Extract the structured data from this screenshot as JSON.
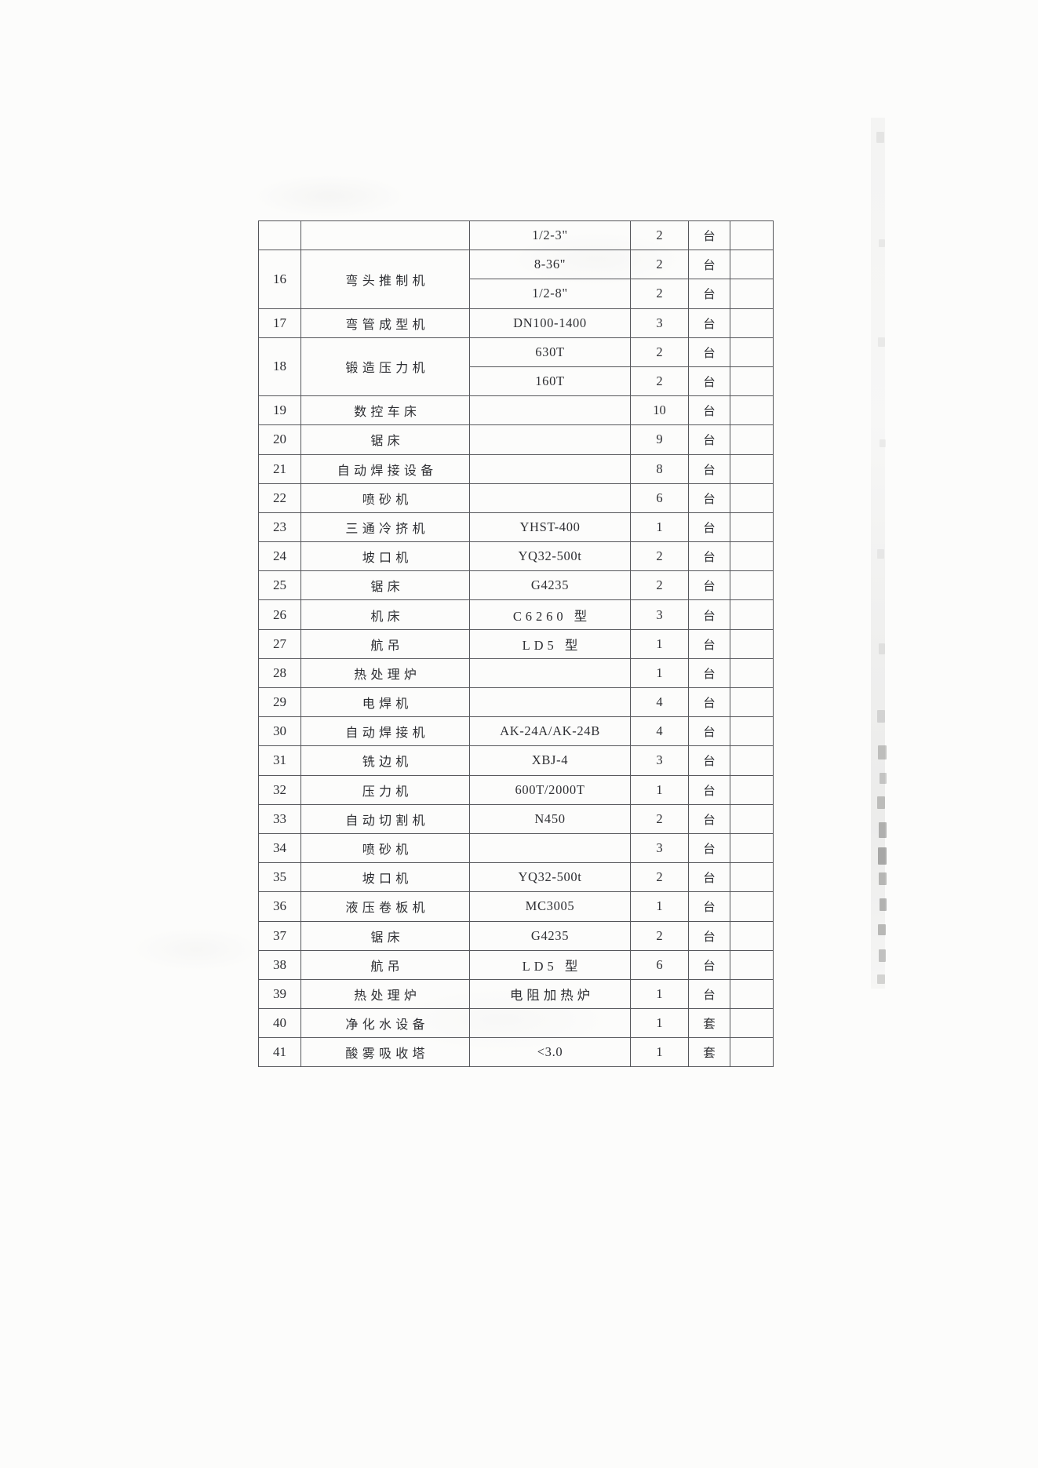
{
  "table": {
    "rows": [
      {
        "no": "",
        "name": "",
        "model": "1/2-3\"",
        "qty": "2",
        "unit": "台",
        "span": 1
      },
      {
        "no": "16",
        "name": "弯头推制机",
        "model": "8-36\"",
        "qty": "2",
        "unit": "台",
        "span": 2
      },
      {
        "cont": true,
        "model": "1/2-8\"",
        "qty": "2",
        "unit": "台"
      },
      {
        "no": "17",
        "name": "弯管成型机",
        "model": "DN100-1400",
        "qty": "3",
        "unit": "台",
        "span": 1
      },
      {
        "no": "18",
        "name": "锻造压力机",
        "model": "630T",
        "qty": "2",
        "unit": "台",
        "span": 2
      },
      {
        "cont": true,
        "model": "160T",
        "qty": "2",
        "unit": "台"
      },
      {
        "no": "19",
        "name": "数控车床",
        "model": "",
        "qty": "10",
        "unit": "台",
        "span": 1
      },
      {
        "no": "20",
        "name": "锯床",
        "model": "",
        "qty": "9",
        "unit": "台",
        "span": 1
      },
      {
        "no": "21",
        "name": "自动焊接设备",
        "model": "",
        "qty": "8",
        "unit": "台",
        "span": 1
      },
      {
        "no": "22",
        "name": "喷砂机",
        "model": "",
        "qty": "6",
        "unit": "台",
        "span": 1
      },
      {
        "no": "23",
        "name": "三通冷挤机",
        "model": "YHST-400",
        "qty": "1",
        "unit": "台",
        "span": 1
      },
      {
        "no": "24",
        "name": "坡口机",
        "model": "YQ32-500t",
        "qty": "2",
        "unit": "台",
        "span": 1
      },
      {
        "no": "25",
        "name": "锯床",
        "model": "G4235",
        "qty": "2",
        "unit": "台",
        "span": 1
      },
      {
        "no": "26",
        "name": "机床",
        "model": "C6260 型",
        "qty": "3",
        "unit": "台",
        "span": 1
      },
      {
        "no": "27",
        "name": "航吊",
        "model": "LD5 型",
        "qty": "1",
        "unit": "台",
        "span": 1
      },
      {
        "no": "28",
        "name": "热处理炉",
        "model": "",
        "qty": "1",
        "unit": "台",
        "span": 1
      },
      {
        "no": "29",
        "name": "电焊机",
        "model": "",
        "qty": "4",
        "unit": "台",
        "span": 1
      },
      {
        "no": "30",
        "name": "自动焊接机",
        "model": "AK-24A/AK-24B",
        "qty": "4",
        "unit": "台",
        "span": 1
      },
      {
        "no": "31",
        "name": "铣边机",
        "model": "XBJ-4",
        "qty": "3",
        "unit": "台",
        "span": 1
      },
      {
        "no": "32",
        "name": "压力机",
        "model": "600T/2000T",
        "qty": "1",
        "unit": "台",
        "span": 1
      },
      {
        "no": "33",
        "name": "自动切割机",
        "model": "N450",
        "qty": "2",
        "unit": "台",
        "span": 1
      },
      {
        "no": "34",
        "name": "喷砂机",
        "model": "",
        "qty": "3",
        "unit": "台",
        "span": 1
      },
      {
        "no": "35",
        "name": "坡口机",
        "model": "YQ32-500t",
        "qty": "2",
        "unit": "台",
        "span": 1
      },
      {
        "no": "36",
        "name": "液压卷板机",
        "model": "MC3005",
        "qty": "1",
        "unit": "台",
        "span": 1
      },
      {
        "no": "37",
        "name": "锯床",
        "model": "G4235",
        "qty": "2",
        "unit": "台",
        "span": 1
      },
      {
        "no": "38",
        "name": "航吊",
        "model": "LD5 型",
        "qty": "6",
        "unit": "台",
        "span": 1
      },
      {
        "no": "39",
        "name": "热处理炉",
        "model": "电阻加热炉",
        "qty": "1",
        "unit": "台",
        "span": 1
      },
      {
        "no": "40",
        "name": "净化水设备",
        "model": "",
        "qty": "1",
        "unit": "套",
        "span": 1
      },
      {
        "no": "41",
        "name": "酸雾吸收塔",
        "model": "<3.0",
        "qty": "1",
        "unit": "套",
        "span": 1
      }
    ]
  },
  "colors": {
    "border": "#55565a",
    "text": "#2e2f33",
    "page": "#fcfcfb"
  }
}
